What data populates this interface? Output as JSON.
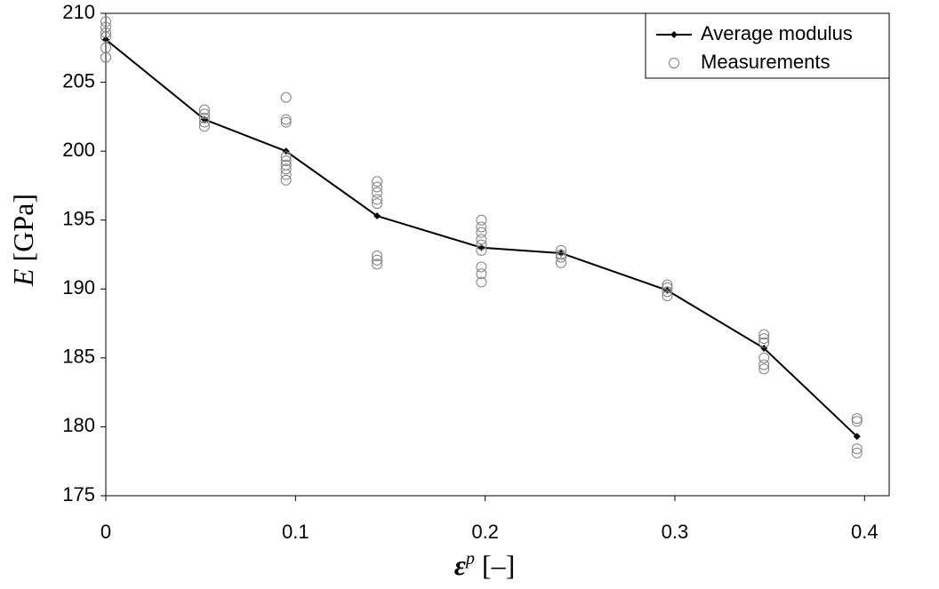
{
  "chart_data": {
    "type": "line",
    "ylabel_symbol": "E",
    "ylabel_unit": "[GPa]",
    "xlabel_symbol": "ε",
    "xlabel_superscript": "p",
    "xlabel_unit": "[–]",
    "xlim": [
      0,
      0.413
    ],
    "xticks": [
      0,
      0.1,
      0.2,
      0.3,
      0.4
    ],
    "ylim": [
      175,
      210
    ],
    "yticks": [
      175,
      180,
      185,
      190,
      195,
      200,
      205,
      210
    ],
    "legend": "upper right",
    "series": [
      {
        "name": "Average modulus",
        "color": "#000000",
        "line": true,
        "marker": "diamond",
        "x": [
          0,
          0.052,
          0.095,
          0.143,
          0.198,
          0.24,
          0.296,
          0.347,
          0.396
        ],
        "values": [
          208.1,
          202.3,
          200.0,
          195.3,
          193.0,
          192.6,
          189.9,
          185.7,
          179.3
        ]
      },
      {
        "name": "Measurements",
        "color": "#808080",
        "line": false,
        "marker": "circle",
        "x": [
          0,
          0,
          0,
          0,
          0,
          0,
          0.052,
          0.052,
          0.052,
          0.052,
          0.052,
          0.095,
          0.095,
          0.095,
          0.095,
          0.095,
          0.095,
          0.095,
          0.095,
          0.095,
          0.143,
          0.143,
          0.143,
          0.143,
          0.143,
          0.143,
          0.143,
          0.143,
          0.198,
          0.198,
          0.198,
          0.198,
          0.198,
          0.198,
          0.198,
          0.198,
          0.198,
          0.24,
          0.24,
          0.24,
          0.24,
          0.296,
          0.296,
          0.296,
          0.296,
          0.347,
          0.347,
          0.347,
          0.347,
          0.347,
          0.347,
          0.396,
          0.396,
          0.396,
          0.396
        ],
        "values": [
          209.4,
          209.0,
          208.6,
          208.3,
          207.5,
          206.8,
          203.0,
          202.7,
          202.4,
          202.1,
          201.8,
          203.9,
          202.3,
          202.1,
          199.6,
          199.3,
          199.0,
          198.7,
          198.3,
          197.9,
          197.8,
          197.4,
          197.0,
          196.5,
          196.2,
          192.4,
          192.1,
          191.8,
          195.0,
          194.5,
          194.1,
          193.6,
          193.2,
          192.8,
          191.6,
          191.1,
          190.5,
          192.8,
          192.5,
          192.3,
          191.9,
          190.3,
          190.1,
          189.8,
          189.5,
          186.7,
          186.4,
          186.1,
          185.0,
          184.5,
          184.2,
          180.6,
          180.4,
          178.4,
          178.1
        ]
      }
    ]
  }
}
